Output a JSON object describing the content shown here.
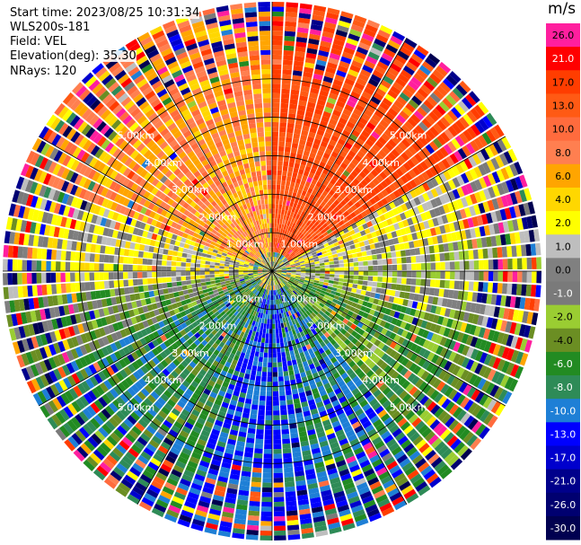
{
  "header": {
    "start_time": "Start time: 2023/08/25 10:31:34",
    "instrument": "WLS200s-181",
    "field": "Field: VEL",
    "elevation": "Elevation(deg): 35.30",
    "nrays": "NRays: 120"
  },
  "colorbar": {
    "unit": "m/s",
    "bins": [
      {
        "label": "26.0",
        "color": "#ff1f9e",
        "text": "#000000"
      },
      {
        "label": "21.0",
        "color": "#ff0000",
        "text": "#ffffff"
      },
      {
        "label": "17.0",
        "color": "#ff3d00",
        "text": "#000000"
      },
      {
        "label": "13.0",
        "color": "#ff5a14",
        "text": "#000000"
      },
      {
        "label": "10.0",
        "color": "#ff6b3d",
        "text": "#000000"
      },
      {
        "label": "8.0",
        "color": "#ff7f50",
        "text": "#000000"
      },
      {
        "label": "6.0",
        "color": "#ffa500",
        "text": "#000000"
      },
      {
        "label": "4.0",
        "color": "#ffd700",
        "text": "#000000"
      },
      {
        "label": "2.0",
        "color": "#ffff00",
        "text": "#000000"
      },
      {
        "label": "1.0",
        "color": "#bebebe",
        "text": "#000000"
      },
      {
        "label": "0.0",
        "color": "#808080",
        "text": "#000000"
      },
      {
        "label": "-1.0",
        "color": "#7a7a7a",
        "text": "#ffffff"
      },
      {
        "label": "-2.0",
        "color": "#9acd32",
        "text": "#000000"
      },
      {
        "label": "-4.0",
        "color": "#6b8e23",
        "text": "#000000"
      },
      {
        "label": "-6.0",
        "color": "#228b22",
        "text": "#ffffff"
      },
      {
        "label": "-8.0",
        "color": "#2e8b57",
        "text": "#ffffff"
      },
      {
        "label": "-10.0",
        "color": "#1e7fd6",
        "text": "#ffffff"
      },
      {
        "label": "-13.0",
        "color": "#0000ff",
        "text": "#ffffff"
      },
      {
        "label": "-17.0",
        "color": "#0000cd",
        "text": "#ffffff"
      },
      {
        "label": "-21.0",
        "color": "#00008b",
        "text": "#ffffff"
      },
      {
        "label": "-26.0",
        "color": "#000070",
        "text": "#ffffff"
      },
      {
        "label": "-30.0",
        "color": "#000050",
        "text": "#ffffff"
      }
    ]
  },
  "chart_data": {
    "type": "heatmap",
    "projection": "polar (plan position indicator)",
    "field": "VEL",
    "unit": "m/s",
    "nrays": 120,
    "max_range_km": 7.0,
    "range_rings_km": [
      1.0,
      2.0,
      3.0,
      4.0,
      5.0
    ],
    "range_ring_labels": [
      "1.00km",
      "2.00km",
      "3.00km",
      "4.00km",
      "5.00km"
    ],
    "grid": true,
    "sector_velocities_ms": [
      {
        "azimuth_from_deg": 0,
        "azimuth_to_deg": 60,
        "dominant_ms": 17.0
      },
      {
        "azimuth_from_deg": 60,
        "azimuth_to_deg": 80,
        "dominant_ms": 2.0
      },
      {
        "azimuth_from_deg": 80,
        "azimuth_to_deg": 105,
        "dominant_ms": 0.0
      },
      {
        "azimuth_from_deg": 105,
        "azimuth_to_deg": 140,
        "dominant_ms": -4.0
      },
      {
        "azimuth_from_deg": 140,
        "azimuth_to_deg": 170,
        "dominant_ms": -8.0
      },
      {
        "azimuth_from_deg": 170,
        "azimuth_to_deg": 200,
        "dominant_ms": -10.0
      },
      {
        "azimuth_from_deg": 200,
        "azimuth_to_deg": 245,
        "dominant_ms": -6.0
      },
      {
        "azimuth_from_deg": 245,
        "azimuth_to_deg": 265,
        "dominant_ms": -2.0
      },
      {
        "azimuth_from_deg": 265,
        "azimuth_to_deg": 290,
        "dominant_ms": 2.0
      },
      {
        "azimuth_from_deg": 290,
        "azimuth_to_deg": 360,
        "dominant_ms": 8.0
      }
    ]
  }
}
